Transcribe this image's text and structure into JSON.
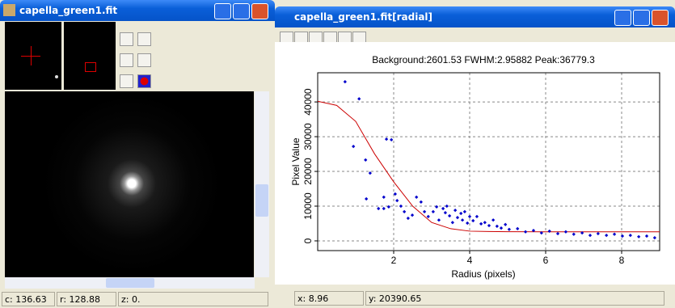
{
  "left_window": {
    "title": "capella_green1.fit",
    "status": [
      "c: 136.63",
      "r: 128.88",
      "z: 0."
    ]
  },
  "right_window": {
    "title": "capella_green1.fit[radial]",
    "status": [
      "x: 8.96",
      "y: 20390.65"
    ]
  },
  "chart_data": {
    "type": "scatter",
    "title": "Background:2601.53  FWHM:2.95882  Peak:36779.3",
    "x_label": "Radius (pixels)",
    "y_label": "Pixel Value",
    "xlim": [
      0,
      9
    ],
    "ylim": [
      -2800,
      48400
    ],
    "xticks": [
      2,
      4,
      6,
      8
    ],
    "yticks": [
      0,
      10000,
      20000,
      30000,
      40000
    ],
    "grid": true,
    "points": {
      "color": "#0000cc",
      "x": [
        0.72,
        1.09,
        0.94,
        1.26,
        1.38,
        1.74,
        1.81,
        1.94,
        1.28,
        1.6,
        1.74,
        1.87,
        2.04,
        2.09,
        2.19,
        2.28,
        2.38,
        2.49,
        2.6,
        2.72,
        2.81,
        2.91,
        3.04,
        3.13,
        3.19,
        3.3,
        3.36,
        3.4,
        3.47,
        3.55,
        3.62,
        3.68,
        3.77,
        3.81,
        3.87,
        3.94,
        4.0,
        4.09,
        4.19,
        4.3,
        4.4,
        4.51,
        4.62,
        4.72,
        4.83,
        4.94,
        5.04,
        5.26,
        5.47,
        5.68,
        5.89,
        6.1,
        6.32,
        6.53,
        6.74,
        6.96,
        7.17,
        7.38,
        7.6,
        7.81,
        8.02,
        8.23,
        8.45,
        8.66,
        8.87
      ],
      "values": [
        45800,
        40900,
        27200,
        23300,
        19500,
        12600,
        29300,
        29100,
        12100,
        9300,
        9300,
        9800,
        13500,
        11600,
        10000,
        8400,
        6500,
        7400,
        12600,
        11200,
        8400,
        7000,
        8400,
        9800,
        6000,
        9300,
        8100,
        10000,
        7200,
        5300,
        8800,
        6700,
        7900,
        6000,
        8400,
        5100,
        7000,
        5800,
        7000,
        4900,
        5300,
        4400,
        6000,
        4200,
        3700,
        4700,
        3300,
        3500,
        2600,
        3000,
        2300,
        2800,
        2100,
        2600,
        1900,
        2300,
        1600,
        2100,
        1600,
        1900,
        1400,
        1600,
        1200,
        1400,
        900
      ]
    },
    "fit": {
      "color": "#cc0000",
      "x": [
        0,
        0.5,
        1,
        1.5,
        2,
        2.5,
        3,
        3.5,
        4,
        4.5,
        5,
        6,
        7,
        8,
        9
      ],
      "values": [
        40200,
        39000,
        34400,
        25000,
        17000,
        10000,
        5300,
        3500,
        2800,
        2700,
        2650,
        2620,
        2610,
        2605,
        2602
      ]
    }
  }
}
